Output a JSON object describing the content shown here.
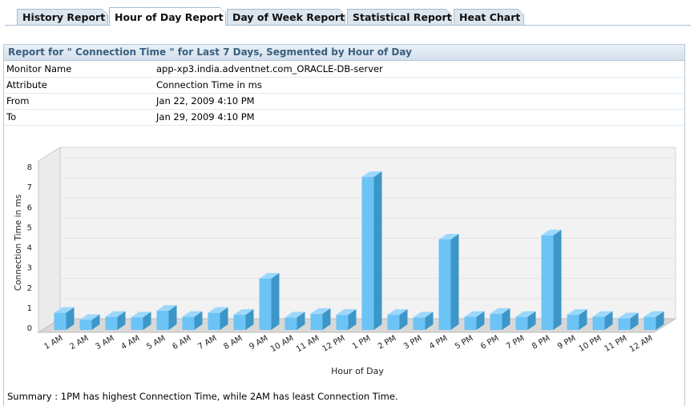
{
  "tabs": [
    {
      "label": "History Report",
      "active": false
    },
    {
      "label": "Hour of Day Report",
      "active": true
    },
    {
      "label": "Day of Week Report",
      "active": false
    },
    {
      "label": "Statistical Report",
      "active": false
    },
    {
      "label": "Heat Chart",
      "active": false
    }
  ],
  "report": {
    "title": "Report for \" Connection Time \" for Last 7 Days, Segmented by Hour of Day",
    "details": [
      {
        "key": "Monitor Name",
        "value": "app-xp3.india.adventnet.com_ORACLE-DB-server"
      },
      {
        "key": "Attribute",
        "value": "Connection Time in ms"
      },
      {
        "key": "From",
        "value": "Jan 22, 2009 4:10 PM"
      },
      {
        "key": "To",
        "value": "Jan 29, 2009 4:10 PM"
      }
    ],
    "summary": "Summary : 1PM has highest Connection Time, while 2AM has least Connection Time."
  },
  "colors": {
    "bar_front": "#6cc3f6",
    "bar_side": "#3d96c8",
    "bar_top": "#9bd8fb",
    "wall": "#f4f4f4"
  },
  "chart_data": {
    "type": "bar",
    "xlabel": "Hour of Day",
    "ylabel": "Connection Time in ms",
    "ylim": [
      0,
      8
    ],
    "yticks": [
      0,
      1,
      2,
      3,
      4,
      5,
      6,
      7,
      8
    ],
    "grid": true,
    "categories": [
      "1 AM",
      "2 AM",
      "3 AM",
      "4 AM",
      "5 AM",
      "6 AM",
      "7 AM",
      "8 AM",
      "9 AM",
      "10 AM",
      "11 AM",
      "12 PM",
      "1 PM",
      "2 PM",
      "3 PM",
      "4 PM",
      "5 PM",
      "6 PM",
      "7 PM",
      "8 PM",
      "9 PM",
      "10 PM",
      "11 PM",
      "12 AM"
    ],
    "values": [
      0.85,
      0.5,
      0.65,
      0.62,
      0.95,
      0.65,
      0.85,
      0.75,
      2.55,
      0.62,
      0.8,
      0.75,
      7.6,
      0.75,
      0.62,
      4.5,
      0.65,
      0.8,
      0.65,
      4.7,
      0.75,
      0.65,
      0.58,
      0.65
    ]
  }
}
